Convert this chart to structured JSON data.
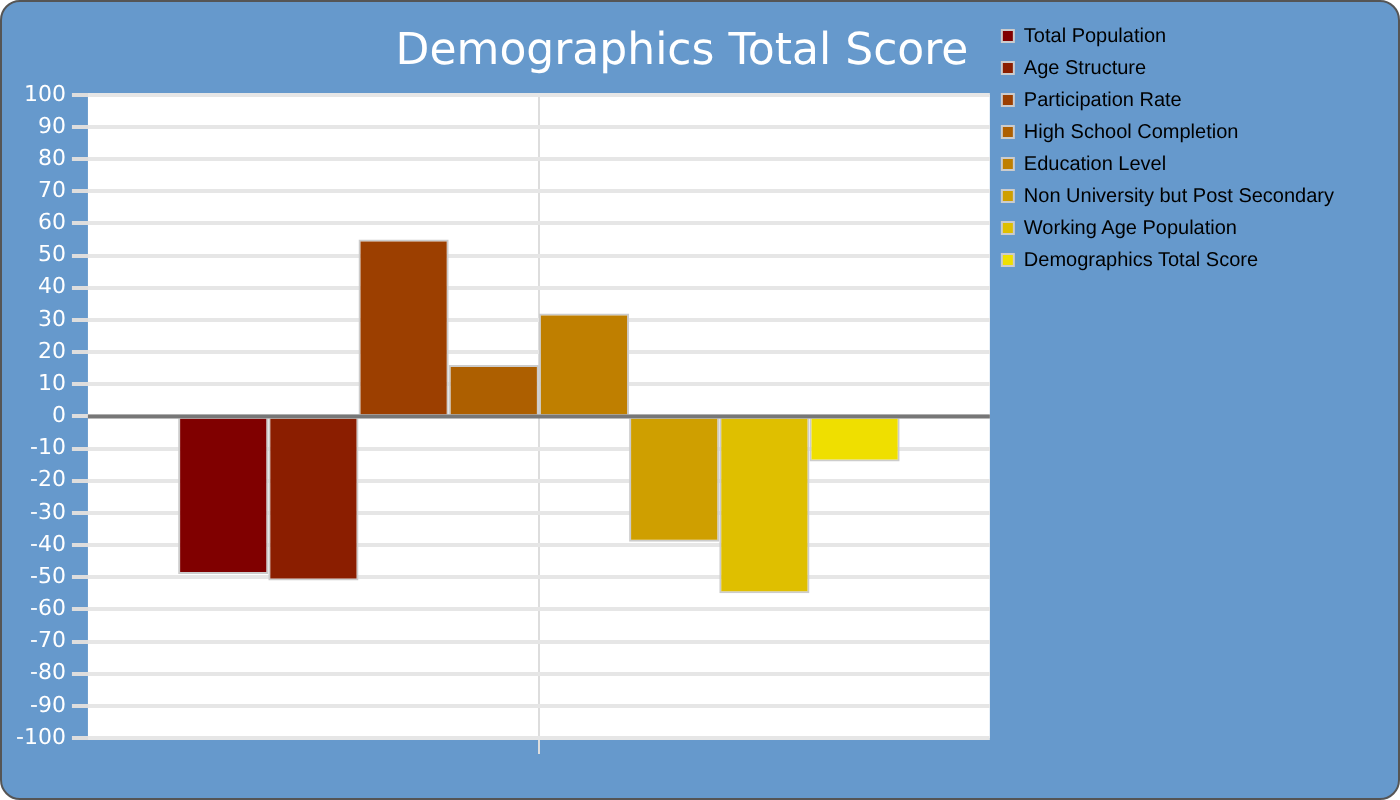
{
  "chart_data": {
    "type": "bar",
    "title": "Demographics Total Score",
    "categories": [
      null
    ],
    "series": [
      {
        "name": "Total Population",
        "color": "#800000",
        "values": [
          -49
        ]
      },
      {
        "name": "Age Structure",
        "color": "#8b1e00",
        "values": [
          -51
        ]
      },
      {
        "name": "Participation Rate",
        "color": "#9c3f00",
        "values": [
          55
        ]
      },
      {
        "name": "High School Completion",
        "color": "#ad5f00",
        "values": [
          16
        ]
      },
      {
        "name": "Education Level",
        "color": "#bf7f00",
        "values": [
          32
        ]
      },
      {
        "name": "Non University but Post Secondary",
        "color": "#cf9f00",
        "values": [
          -39
        ]
      },
      {
        "name": "Working Age Population",
        "color": "#dfbf00",
        "values": [
          -55
        ]
      },
      {
        "name": "Demographics Total Score",
        "color": "#efdf00",
        "values": [
          -14
        ]
      }
    ],
    "ylim": [
      -100,
      100
    ],
    "yticks": [
      -100,
      -90,
      -80,
      -70,
      -60,
      -50,
      -40,
      -30,
      -20,
      -10,
      0,
      10,
      20,
      30,
      40,
      50,
      60,
      70,
      80,
      90,
      100
    ],
    "grid": true,
    "legend": "right"
  }
}
